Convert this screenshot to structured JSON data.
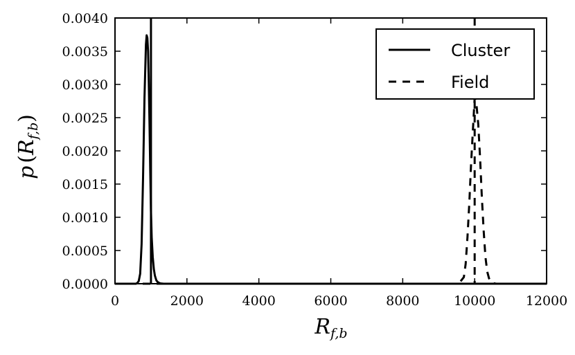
{
  "chart_data": {
    "type": "line",
    "xlabel_main": "R",
    "xlabel_sub": "f,b",
    "ylabel_p": "p",
    "ylabel_open": "(",
    "ylabel_R": "R",
    "ylabel_sub": "f,b",
    "ylabel_close": ")",
    "xlim": [
      0,
      12000
    ],
    "ylim": [
      0,
      0.004
    ],
    "xticks": [
      0,
      2000,
      4000,
      6000,
      8000,
      10000,
      12000
    ],
    "xtick_labels": [
      "0",
      "2000",
      "4000",
      "6000",
      "8000",
      "10000",
      "12000"
    ],
    "yticks": [
      0,
      0.0005,
      0.001,
      0.0015,
      0.002,
      0.0025,
      0.003,
      0.0035,
      0.004
    ],
    "ytick_labels": [
      "0.0000",
      "0.0005",
      "0.0010",
      "0.0015",
      "0.0020",
      "0.0025",
      "0.0030",
      "0.0035",
      "0.0040"
    ],
    "grid": false,
    "legend_position": "top-right",
    "series": [
      {
        "name": "Cluster",
        "style": "solid",
        "color": "#000000",
        "x": [
          0,
          580,
          620,
          660,
          700,
          740,
          780,
          820,
          860,
          880,
          900,
          920,
          940,
          960,
          980,
          1000,
          1020,
          1050,
          1080,
          1110,
          1150,
          1200,
          1260,
          1350,
          12000
        ],
        "y": [
          0,
          0.0,
          1e-05,
          4e-05,
          0.00015,
          0.0006,
          0.0016,
          0.0028,
          0.0036,
          0.00374,
          0.0037,
          0.0035,
          0.003,
          0.0024,
          0.0017,
          0.0011,
          0.0007,
          0.0004,
          0.00022,
          0.00012,
          5e-05,
          2e-05,
          5e-06,
          0.0,
          0.0
        ]
      },
      {
        "name": "Field",
        "style": "dashed",
        "color": "#000000",
        "x": [
          0,
          9500,
          9600,
          9700,
          9750,
          9800,
          9850,
          9900,
          9950,
          10000,
          10050,
          10100,
          10150,
          10200,
          10250,
          10300,
          10350,
          10400,
          10450,
          10500,
          10600,
          12000
        ],
        "y": [
          0,
          0.0,
          3e-05,
          0.0001,
          0.0003,
          0.0007,
          0.0012,
          0.0018,
          0.0023,
          0.0028,
          0.0027,
          0.0024,
          0.0019,
          0.0013,
          0.0008,
          0.0004,
          0.00018,
          8e-05,
          3e-05,
          1e-05,
          0.0,
          0.0
        ]
      }
    ],
    "vlines": [
      {
        "x": 1000,
        "style": "solid"
      },
      {
        "x": 10000,
        "style": "dashed"
      }
    ]
  }
}
